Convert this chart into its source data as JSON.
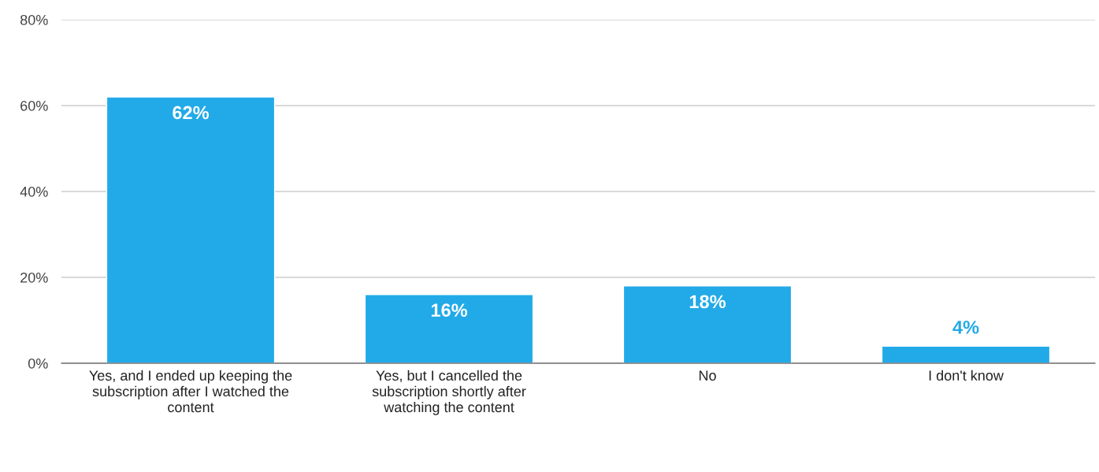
{
  "chart_data": {
    "type": "bar",
    "categories": [
      "Yes, and I ended up keeping the subscription after I watched the content",
      "Yes, but I cancelled the subscription shortly after watching the content",
      "No",
      "I don't know"
    ],
    "values": [
      62,
      16,
      18,
      4
    ],
    "value_labels": [
      "62%",
      "16%",
      "18%",
      "4%"
    ],
    "color": "#22aae8",
    "ylim": [
      0,
      80
    ],
    "yticks": [
      {
        "value": 0,
        "label": "0%"
      },
      {
        "value": 20,
        "label": "20%"
      },
      {
        "value": 40,
        "label": "40%"
      },
      {
        "value": 60,
        "label": "60%"
      },
      {
        "value": 80,
        "label": "80%"
      }
    ],
    "grid": "y"
  }
}
